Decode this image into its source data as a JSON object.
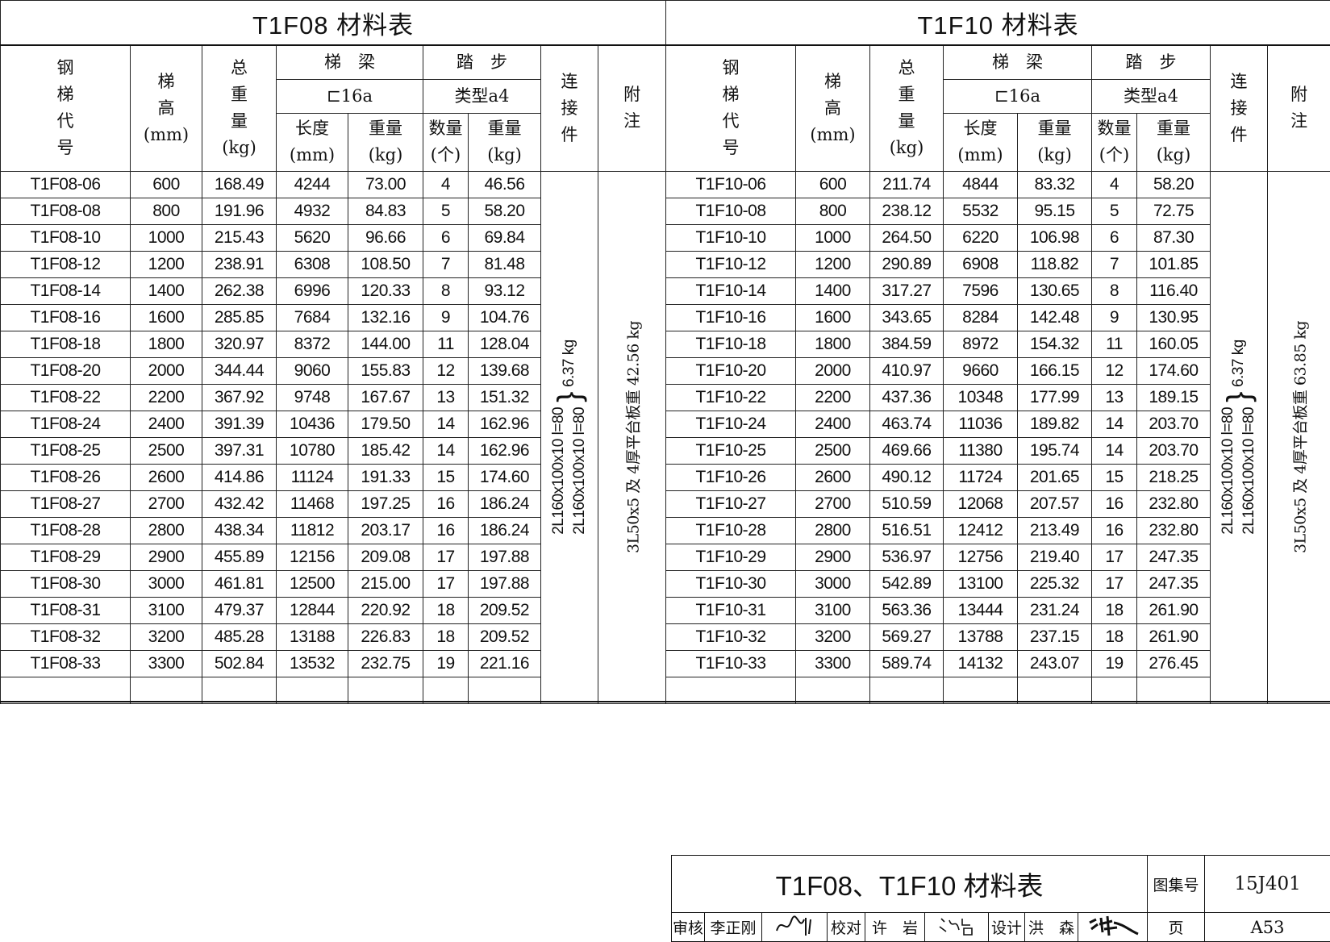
{
  "headers": {
    "code": [
      "钢",
      "梯",
      "代",
      "号"
    ],
    "height": [
      "梯",
      "高",
      "(mm)"
    ],
    "total": [
      "总",
      "重",
      "量",
      "(kg)"
    ],
    "beam": "梯　梁",
    "beam_spec": "⊏16a",
    "step": "踏　步",
    "step_spec": "类型a4",
    "length": [
      "长度",
      "(mm)"
    ],
    "weight": [
      "重量",
      "(kg)"
    ],
    "count": [
      "数量",
      "(个)"
    ],
    "connector": [
      "连",
      "接",
      "件"
    ],
    "note": [
      "附",
      "注"
    ]
  },
  "tables": [
    {
      "title": "T1F08  材料表",
      "connector": {
        "lines": [
          "2L160x100x10  l=80",
          "2L160x100x10  l=80"
        ],
        "weight": "6.37 kg"
      },
      "note": "3L50x5 及 4厚平台板重 42.56 kg",
      "rows": [
        [
          "T1F08-06",
          "600",
          "168.49",
          "4244",
          "73.00",
          "4",
          "46.56"
        ],
        [
          "T1F08-08",
          "800",
          "191.96",
          "4932",
          "84.83",
          "5",
          "58.20"
        ],
        [
          "T1F08-10",
          "1000",
          "215.43",
          "5620",
          "96.66",
          "6",
          "69.84"
        ],
        [
          "T1F08-12",
          "1200",
          "238.91",
          "6308",
          "108.50",
          "7",
          "81.48"
        ],
        [
          "T1F08-14",
          "1400",
          "262.38",
          "6996",
          "120.33",
          "8",
          "93.12"
        ],
        [
          "T1F08-16",
          "1600",
          "285.85",
          "7684",
          "132.16",
          "9",
          "104.76"
        ],
        [
          "T1F08-18",
          "1800",
          "320.97",
          "8372",
          "144.00",
          "11",
          "128.04"
        ],
        [
          "T1F08-20",
          "2000",
          "344.44",
          "9060",
          "155.83",
          "12",
          "139.68"
        ],
        [
          "T1F08-22",
          "2200",
          "367.92",
          "9748",
          "167.67",
          "13",
          "151.32"
        ],
        [
          "T1F08-24",
          "2400",
          "391.39",
          "10436",
          "179.50",
          "14",
          "162.96"
        ],
        [
          "T1F08-25",
          "2500",
          "397.31",
          "10780",
          "185.42",
          "14",
          "162.96"
        ],
        [
          "T1F08-26",
          "2600",
          "414.86",
          "11124",
          "191.33",
          "15",
          "174.60"
        ],
        [
          "T1F08-27",
          "2700",
          "432.42",
          "11468",
          "197.25",
          "16",
          "186.24"
        ],
        [
          "T1F08-28",
          "2800",
          "438.34",
          "11812",
          "203.17",
          "16",
          "186.24"
        ],
        [
          "T1F08-29",
          "2900",
          "455.89",
          "12156",
          "209.08",
          "17",
          "197.88"
        ],
        [
          "T1F08-30",
          "3000",
          "461.81",
          "12500",
          "215.00",
          "17",
          "197.88"
        ],
        [
          "T1F08-31",
          "3100",
          "479.37",
          "12844",
          "220.92",
          "18",
          "209.52"
        ],
        [
          "T1F08-32",
          "3200",
          "485.28",
          "13188",
          "226.83",
          "18",
          "209.52"
        ],
        [
          "T1F08-33",
          "3300",
          "502.84",
          "13532",
          "232.75",
          "19",
          "221.16"
        ]
      ]
    },
    {
      "title": "T1F10  材料表",
      "connector": {
        "lines": [
          "2L160x100x10  l=80",
          "2L160x100x10  l=80"
        ],
        "weight": "6.37 kg"
      },
      "note": "3L50x5 及 4厚平台板重 63.85 kg",
      "rows": [
        [
          "T1F10-06",
          "600",
          "211.74",
          "4844",
          "83.32",
          "4",
          "58.20"
        ],
        [
          "T1F10-08",
          "800",
          "238.12",
          "5532",
          "95.15",
          "5",
          "72.75"
        ],
        [
          "T1F10-10",
          "1000",
          "264.50",
          "6220",
          "106.98",
          "6",
          "87.30"
        ],
        [
          "T1F10-12",
          "1200",
          "290.89",
          "6908",
          "118.82",
          "7",
          "101.85"
        ],
        [
          "T1F10-14",
          "1400",
          "317.27",
          "7596",
          "130.65",
          "8",
          "116.40"
        ],
        [
          "T1F10-16",
          "1600",
          "343.65",
          "8284",
          "142.48",
          "9",
          "130.95"
        ],
        [
          "T1F10-18",
          "1800",
          "384.59",
          "8972",
          "154.32",
          "11",
          "160.05"
        ],
        [
          "T1F10-20",
          "2000",
          "410.97",
          "9660",
          "166.15",
          "12",
          "174.60"
        ],
        [
          "T1F10-22",
          "2200",
          "437.36",
          "10348",
          "177.99",
          "13",
          "189.15"
        ],
        [
          "T1F10-24",
          "2400",
          "463.74",
          "11036",
          "189.82",
          "14",
          "203.70"
        ],
        [
          "T1F10-25",
          "2500",
          "469.66",
          "11380",
          "195.74",
          "14",
          "203.70"
        ],
        [
          "T1F10-26",
          "2600",
          "490.12",
          "11724",
          "201.65",
          "15",
          "218.25"
        ],
        [
          "T1F10-27",
          "2700",
          "510.59",
          "12068",
          "207.57",
          "16",
          "232.80"
        ],
        [
          "T1F10-28",
          "2800",
          "516.51",
          "12412",
          "213.49",
          "16",
          "232.80"
        ],
        [
          "T1F10-29",
          "2900",
          "536.97",
          "12756",
          "219.40",
          "17",
          "247.35"
        ],
        [
          "T1F10-30",
          "3000",
          "542.89",
          "13100",
          "225.32",
          "17",
          "247.35"
        ],
        [
          "T1F10-31",
          "3100",
          "563.36",
          "13444",
          "231.24",
          "18",
          "261.90"
        ],
        [
          "T1F10-32",
          "3200",
          "569.27",
          "13788",
          "237.15",
          "18",
          "261.90"
        ],
        [
          "T1F10-33",
          "3300",
          "589.74",
          "14132",
          "243.07",
          "19",
          "276.45"
        ]
      ]
    }
  ],
  "footer": {
    "title": "T1F08、T1F10  材料表",
    "atlas_label": "图集号",
    "atlas_no": "15J401",
    "page_label": "页",
    "page_no": "A53",
    "review_label": "审核",
    "reviewer": "李正刚",
    "check_label": "校对",
    "checker": "许　岩",
    "design_label": "设计",
    "designer": "洪　森"
  }
}
